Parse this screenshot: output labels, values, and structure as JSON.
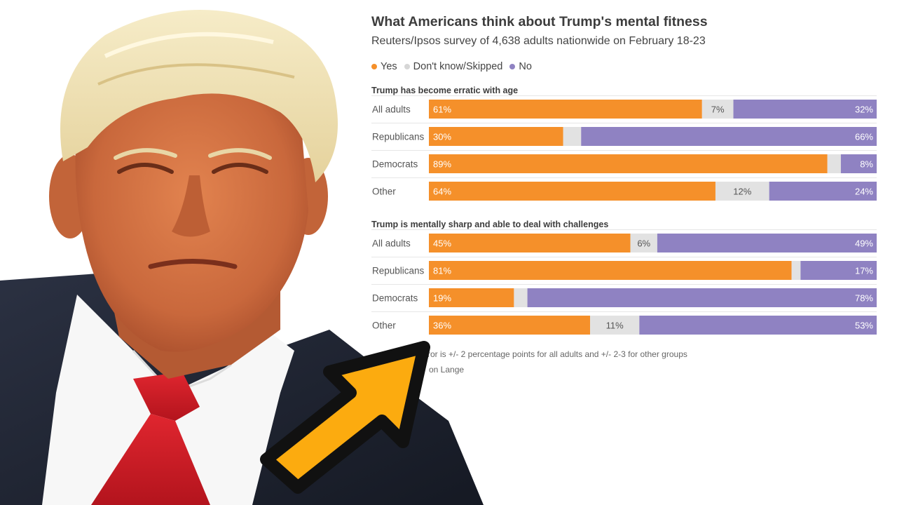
{
  "colors": {
    "yes": "#f5902a",
    "dont_know": "#e2e2e2",
    "no": "#8f82c2",
    "arrow_fill": "#fcab0f",
    "arrow_outline": "#111111"
  },
  "legend": {
    "yes": "Yes",
    "dont_know": "Don't know/Skipped",
    "no": "No"
  },
  "footnote": {
    "margin_text": "rror is +/- 2 percentage points for all adults and +/- 2-3 for other groups",
    "credit_text": "on Lange"
  },
  "chart_data": {
    "type": "bar",
    "stacked": true,
    "orientation": "horizontal",
    "title": "What Americans think about Trump's mental fitness",
    "subtitle": "Reuters/Ipsos survey of 4,638 adults nationwide on February 18-23",
    "xlim": [
      0,
      100
    ],
    "legend_position": "top-left",
    "grid": false,
    "groups": [
      {
        "title": "Trump has become erratic with age",
        "rows": [
          {
            "label": "All adults",
            "yes": 61,
            "dont_know": 7,
            "no": 32,
            "yes_label": "61%",
            "dont_know_label": "7%",
            "no_label": "32%"
          },
          {
            "label": "Republicans",
            "yes": 30,
            "dont_know": 4,
            "no": 66,
            "yes_label": "30%",
            "dont_know_label": "",
            "no_label": "66%"
          },
          {
            "label": "Democrats",
            "yes": 89,
            "dont_know": 3,
            "no": 8,
            "yes_label": "89%",
            "dont_know_label": "",
            "no_label": "8%"
          },
          {
            "label": "Other",
            "yes": 64,
            "dont_know": 12,
            "no": 24,
            "yes_label": "64%",
            "dont_know_label": "12%",
            "no_label": "24%"
          }
        ]
      },
      {
        "title": "Trump is mentally sharp and able to deal with challenges",
        "rows": [
          {
            "label": "All adults",
            "yes": 45,
            "dont_know": 6,
            "no": 49,
            "yes_label": "45%",
            "dont_know_label": "6%",
            "no_label": "49%"
          },
          {
            "label": "Republicans",
            "yes": 81,
            "dont_know": 2,
            "no": 17,
            "yes_label": "81%",
            "dont_know_label": "",
            "no_label": "17%"
          },
          {
            "label": "Democrats",
            "yes": 19,
            "dont_know": 3,
            "no": 78,
            "yes_label": "19%",
            "dont_know_label": "",
            "no_label": "78%"
          },
          {
            "label": "Other",
            "yes": 36,
            "dont_know": 11,
            "no": 53,
            "yes_label": "36%",
            "dont_know_label": "11%",
            "no_label": "53%"
          }
        ]
      }
    ]
  }
}
